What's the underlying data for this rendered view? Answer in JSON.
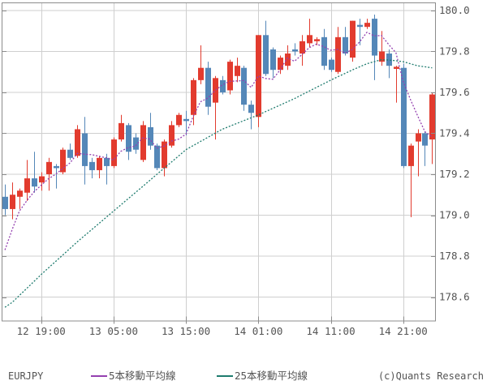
{
  "chart_data": {
    "type": "candlestick",
    "symbol": "EURJPY",
    "copyright": "(c)Quants Research",
    "legend": [
      {
        "label": "5本移動平均線",
        "color": "#9440b0"
      },
      {
        "label": "25本移動平均線",
        "color": "#1e7b6e"
      }
    ],
    "colors": {
      "up": "#e23b2e",
      "down": "#5487b8",
      "grid": "#cfcfcf",
      "frame": "#8c8c8c",
      "text": "#545454",
      "background": "#ffffff"
    },
    "y_axis": {
      "side": "right",
      "tick_values": [
        180.0,
        179.8,
        179.6,
        179.4,
        179.2,
        179.0,
        178.8,
        178.6
      ],
      "tick_labels": [
        "180.0",
        "179.8",
        "179.6",
        "179.4",
        "179.2",
        "179.0",
        "178.8",
        "178.6"
      ],
      "range": [
        178.47,
        180.04
      ]
    },
    "x_axis": {
      "tick_labels": [
        "12 19:00",
        "13 05:00",
        "13 15:00",
        "14 01:00",
        "14 11:00",
        "14 21:00"
      ],
      "tick_candle_index": [
        5,
        15,
        25,
        35,
        45,
        55
      ]
    },
    "candles_format": [
      "open",
      "high",
      "low",
      "close"
    ],
    "candles": [
      [
        179.09,
        179.15,
        179.0,
        179.03
      ],
      [
        179.03,
        179.16,
        178.98,
        179.1
      ],
      [
        179.09,
        179.13,
        179.03,
        179.12
      ],
      [
        179.11,
        179.27,
        179.07,
        179.18
      ],
      [
        179.18,
        179.31,
        179.11,
        179.14
      ],
      [
        179.16,
        179.21,
        179.12,
        179.19
      ],
      [
        179.2,
        179.28,
        179.12,
        179.26
      ],
      [
        179.24,
        179.25,
        179.13,
        179.23
      ],
      [
        179.21,
        179.33,
        179.2,
        179.32
      ],
      [
        179.32,
        179.35,
        179.27,
        179.28
      ],
      [
        179.29,
        179.44,
        179.28,
        179.42
      ],
      [
        179.4,
        179.48,
        179.15,
        179.24
      ],
      [
        179.26,
        179.28,
        179.18,
        179.22
      ],
      [
        179.22,
        179.29,
        179.18,
        179.28
      ],
      [
        179.28,
        179.3,
        179.15,
        179.24
      ],
      [
        179.24,
        179.38,
        179.23,
        179.37
      ],
      [
        179.37,
        179.49,
        179.36,
        179.45
      ],
      [
        179.44,
        179.45,
        179.27,
        179.31
      ],
      [
        179.38,
        179.4,
        179.3,
        179.32
      ],
      [
        179.27,
        179.46,
        179.26,
        179.44
      ],
      [
        179.43,
        179.5,
        179.32,
        179.34
      ],
      [
        179.34,
        179.35,
        179.22,
        179.23
      ],
      [
        179.23,
        179.37,
        179.19,
        179.36
      ],
      [
        179.34,
        179.46,
        179.33,
        179.44
      ],
      [
        179.44,
        179.5,
        179.43,
        179.49
      ],
      [
        179.47,
        179.51,
        179.39,
        179.46
      ],
      [
        179.49,
        179.67,
        179.44,
        179.66
      ],
      [
        179.66,
        179.83,
        179.64,
        179.72
      ],
      [
        179.72,
        179.75,
        179.49,
        179.53
      ],
      [
        179.55,
        179.68,
        179.37,
        179.67
      ],
      [
        179.66,
        179.68,
        179.59,
        179.6
      ],
      [
        179.61,
        179.76,
        179.59,
        179.75
      ],
      [
        179.68,
        179.77,
        179.65,
        179.73
      ],
      [
        179.72,
        179.73,
        179.51,
        179.54
      ],
      [
        179.54,
        179.56,
        179.42,
        179.5
      ],
      [
        179.48,
        179.88,
        179.43,
        179.88
      ],
      [
        179.88,
        179.95,
        179.68,
        179.69
      ],
      [
        179.81,
        179.82,
        179.67,
        179.71
      ],
      [
        179.71,
        179.78,
        179.69,
        179.77
      ],
      [
        179.73,
        179.83,
        179.71,
        179.79
      ],
      [
        179.81,
        179.84,
        179.78,
        179.8
      ],
      [
        179.79,
        179.88,
        179.73,
        179.85
      ],
      [
        179.84,
        179.96,
        179.82,
        179.88
      ],
      [
        179.85,
        179.87,
        179.83,
        179.86
      ],
      [
        179.87,
        179.91,
        179.71,
        179.73
      ],
      [
        179.76,
        179.77,
        179.7,
        179.71
      ],
      [
        179.7,
        179.92,
        179.69,
        179.87
      ],
      [
        179.87,
        179.92,
        179.78,
        179.79
      ],
      [
        179.77,
        179.95,
        179.75,
        179.95
      ],
      [
        179.93,
        179.96,
        179.83,
        179.92
      ],
      [
        179.92,
        179.96,
        179.91,
        179.94
      ],
      [
        179.96,
        179.98,
        179.66,
        179.78
      ],
      [
        179.75,
        179.9,
        179.73,
        179.8
      ],
      [
        179.79,
        179.81,
        179.67,
        179.73
      ],
      [
        179.715,
        179.73,
        179.55,
        179.725
      ],
      [
        179.72,
        179.74,
        179.23,
        179.24
      ],
      [
        179.24,
        179.35,
        178.99,
        179.34
      ],
      [
        179.36,
        179.42,
        179.19,
        179.4
      ],
      [
        179.4,
        179.41,
        179.24,
        179.34
      ],
      [
        179.37,
        179.6,
        179.25,
        179.59
      ]
    ],
    "ma5": [
      178.83,
      178.93,
      179.02,
      179.07,
      179.114,
      179.146,
      179.178,
      179.2,
      179.228,
      179.256,
      179.302,
      179.298,
      179.296,
      179.288,
      179.28,
      179.27,
      179.312,
      179.33,
      179.338,
      179.378,
      179.372,
      179.328,
      179.338,
      179.362,
      179.372,
      179.396,
      179.482,
      179.554,
      179.572,
      179.608,
      179.636,
      179.654,
      179.656,
      179.658,
      179.624,
      179.68,
      179.668,
      179.664,
      179.71,
      179.768,
      179.752,
      179.784,
      179.818,
      179.836,
      179.824,
      179.806,
      179.81,
      179.792,
      179.81,
      179.848,
      179.894,
      179.876,
      179.878,
      179.834,
      179.794,
      179.654,
      179.566,
      179.486,
      179.408,
      179.382
    ],
    "ma25": [
      178.55,
      178.574,
      178.608,
      178.642,
      178.676,
      178.71,
      178.742,
      178.774,
      178.806,
      178.838,
      178.87,
      178.9,
      178.93,
      178.96,
      178.99,
      179.02,
      179.05,
      179.08,
      179.11,
      179.14,
      179.17,
      179.2,
      179.23,
      179.26,
      179.29,
      179.32,
      179.34,
      179.36,
      179.38,
      179.4,
      179.42,
      179.434,
      179.448,
      179.462,
      179.476,
      179.49,
      179.506,
      179.522,
      179.538,
      179.554,
      179.57,
      179.588,
      179.606,
      179.624,
      179.642,
      179.66,
      179.677,
      179.693,
      179.71,
      179.725,
      179.74,
      179.75,
      179.76,
      179.758,
      179.755,
      179.75,
      179.74,
      179.73,
      179.725,
      179.72
    ]
  }
}
